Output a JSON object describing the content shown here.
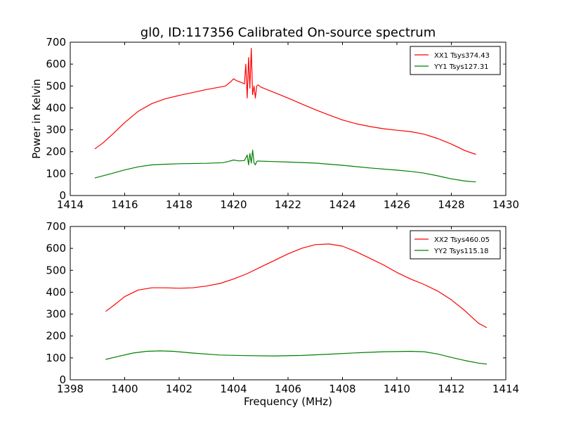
{
  "title": "gl0, ID:117356 Calibrated On-source spectrum",
  "colors": {
    "xx": "#ff0000",
    "yy": "#008000"
  },
  "chart_data": [
    {
      "type": "line",
      "xlabel": "",
      "ylabel": "Power in Kelvin",
      "xlim": [
        1414,
        1430
      ],
      "ylim": [
        0,
        700
      ],
      "xticks": [
        1414,
        1416,
        1418,
        1420,
        1422,
        1424,
        1426,
        1428,
        1430
      ],
      "yticks": [
        0,
        100,
        200,
        300,
        400,
        500,
        600,
        700
      ],
      "legend_position": "top-right",
      "series": [
        {
          "name": "XX1 Tsys374.43",
          "color": "#ff0000",
          "x": [
            1414.9,
            1415.2,
            1415.6,
            1416.0,
            1416.5,
            1417.0,
            1417.5,
            1418.0,
            1418.5,
            1419.0,
            1419.5,
            1419.7,
            1419.9,
            1420.0,
            1420.1,
            1420.2,
            1420.3,
            1420.4,
            1420.45,
            1420.5,
            1420.55,
            1420.6,
            1420.65,
            1420.7,
            1420.75,
            1420.8,
            1420.85,
            1420.9,
            1421.0,
            1421.5,
            1422.0,
            1422.5,
            1423.0,
            1423.5,
            1424.0,
            1424.5,
            1425.0,
            1425.5,
            1426.0,
            1426.5,
            1427.0,
            1427.5,
            1428.0,
            1428.5,
            1428.9
          ],
          "y": [
            213,
            240,
            285,
            333,
            385,
            420,
            442,
            457,
            470,
            484,
            495,
            500,
            520,
            533,
            525,
            520,
            515,
            510,
            600,
            445,
            630,
            490,
            672,
            460,
            500,
            445,
            500,
            505,
            495,
            470,
            445,
            418,
            392,
            368,
            345,
            328,
            315,
            305,
            298,
            292,
            280,
            260,
            235,
            205,
            188
          ]
        },
        {
          "name": "YY1 Tsys127.31",
          "color": "#008000",
          "x": [
            1414.9,
            1415.5,
            1416.0,
            1416.5,
            1417.0,
            1417.5,
            1418.0,
            1419.0,
            1419.6,
            1419.8,
            1420.0,
            1420.2,
            1420.4,
            1420.5,
            1420.55,
            1420.6,
            1420.65,
            1420.7,
            1420.75,
            1420.8,
            1420.85,
            1420.9,
            1421.0,
            1422.0,
            1423.0,
            1424.0,
            1425.0,
            1426.0,
            1426.5,
            1427.0,
            1427.5,
            1428.0,
            1428.5,
            1428.9
          ],
          "y": [
            80,
            100,
            117,
            131,
            140,
            143,
            145,
            147,
            150,
            155,
            162,
            158,
            160,
            185,
            140,
            192,
            148,
            207,
            150,
            140,
            155,
            158,
            157,
            153,
            148,
            138,
            126,
            116,
            110,
            102,
            90,
            76,
            66,
            62
          ]
        }
      ]
    },
    {
      "type": "line",
      "xlabel": "Frequency (MHz)",
      "ylabel": "",
      "xlim": [
        1398,
        1414
      ],
      "ylim": [
        0,
        700
      ],
      "xticks": [
        1398,
        1400,
        1402,
        1404,
        1406,
        1408,
        1410,
        1412,
        1414
      ],
      "yticks": [
        0,
        100,
        200,
        300,
        400,
        500,
        600,
        700
      ],
      "legend_position": "top-right",
      "series": [
        {
          "name": "XX2 Tsys460.05",
          "color": "#ff0000",
          "x": [
            1399.3,
            1399.6,
            1400.0,
            1400.5,
            1401.0,
            1401.5,
            1402.0,
            1402.5,
            1403.0,
            1403.5,
            1404.0,
            1404.5,
            1405.0,
            1405.5,
            1406.0,
            1406.5,
            1407.0,
            1407.5,
            1408.0,
            1408.5,
            1409.0,
            1409.5,
            1410.0,
            1410.5,
            1411.0,
            1411.5,
            1412.0,
            1412.5,
            1413.0,
            1413.3
          ],
          "y": [
            312,
            340,
            380,
            410,
            420,
            420,
            418,
            420,
            428,
            440,
            460,
            485,
            515,
            545,
            575,
            600,
            617,
            620,
            610,
            585,
            555,
            525,
            490,
            460,
            435,
            405,
            365,
            315,
            258,
            238
          ]
        },
        {
          "name": "YY2 Tsys115.18",
          "color": "#008000",
          "x": [
            1399.3,
            1399.8,
            1400.3,
            1400.8,
            1401.3,
            1401.8,
            1402.5,
            1403.5,
            1404.5,
            1405.5,
            1406.5,
            1407.5,
            1408.5,
            1409.5,
            1410.5,
            1411.0,
            1411.5,
            1412.0,
            1412.5,
            1413.0,
            1413.3
          ],
          "y": [
            93,
            108,
            122,
            130,
            132,
            130,
            122,
            113,
            110,
            109,
            111,
            117,
            123,
            128,
            130,
            128,
            118,
            102,
            88,
            76,
            72
          ]
        }
      ]
    }
  ]
}
